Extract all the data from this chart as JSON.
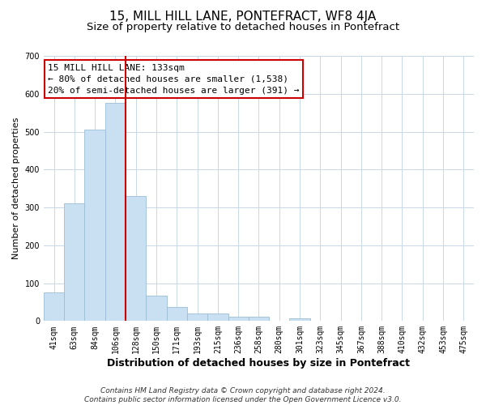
{
  "title": "15, MILL HILL LANE, PONTEFRACT, WF8 4JA",
  "subtitle": "Size of property relative to detached houses in Pontefract",
  "xlabel": "Distribution of detached houses by size in Pontefract",
  "ylabel": "Number of detached properties",
  "bar_labels": [
    "41sqm",
    "63sqm",
    "84sqm",
    "106sqm",
    "128sqm",
    "150sqm",
    "171sqm",
    "193sqm",
    "215sqm",
    "236sqm",
    "258sqm",
    "280sqm",
    "301sqm",
    "323sqm",
    "345sqm",
    "367sqm",
    "388sqm",
    "410sqm",
    "432sqm",
    "453sqm",
    "475sqm"
  ],
  "bar_heights": [
    75,
    310,
    505,
    575,
    330,
    68,
    37,
    19,
    19,
    12,
    12,
    0,
    8,
    0,
    0,
    0,
    0,
    0,
    0,
    0,
    0
  ],
  "bar_color": "#c9dff2",
  "bar_edge_color": "#9cbdd6",
  "vline_color": "#cc0000",
  "annotation_line1": "15 MILL HILL LANE: 133sqm",
  "annotation_line2": "← 80% of detached houses are smaller (1,538)",
  "annotation_line3": "20% of semi-detached houses are larger (391) →",
  "annotation_box_color": "#ffffff",
  "annotation_box_edge_color": "#cc0000",
  "ylim": [
    0,
    700
  ],
  "yticks": [
    0,
    100,
    200,
    300,
    400,
    500,
    600,
    700
  ],
  "footer_line1": "Contains HM Land Registry data © Crown copyright and database right 2024.",
  "footer_line2": "Contains public sector information licensed under the Open Government Licence v3.0.",
  "background_color": "#ffffff",
  "grid_color": "#c8d8e8",
  "title_fontsize": 11,
  "subtitle_fontsize": 9.5,
  "xlabel_fontsize": 9,
  "ylabel_fontsize": 8,
  "tick_fontsize": 7,
  "footer_fontsize": 6.5,
  "annotation_fontsize": 8
}
